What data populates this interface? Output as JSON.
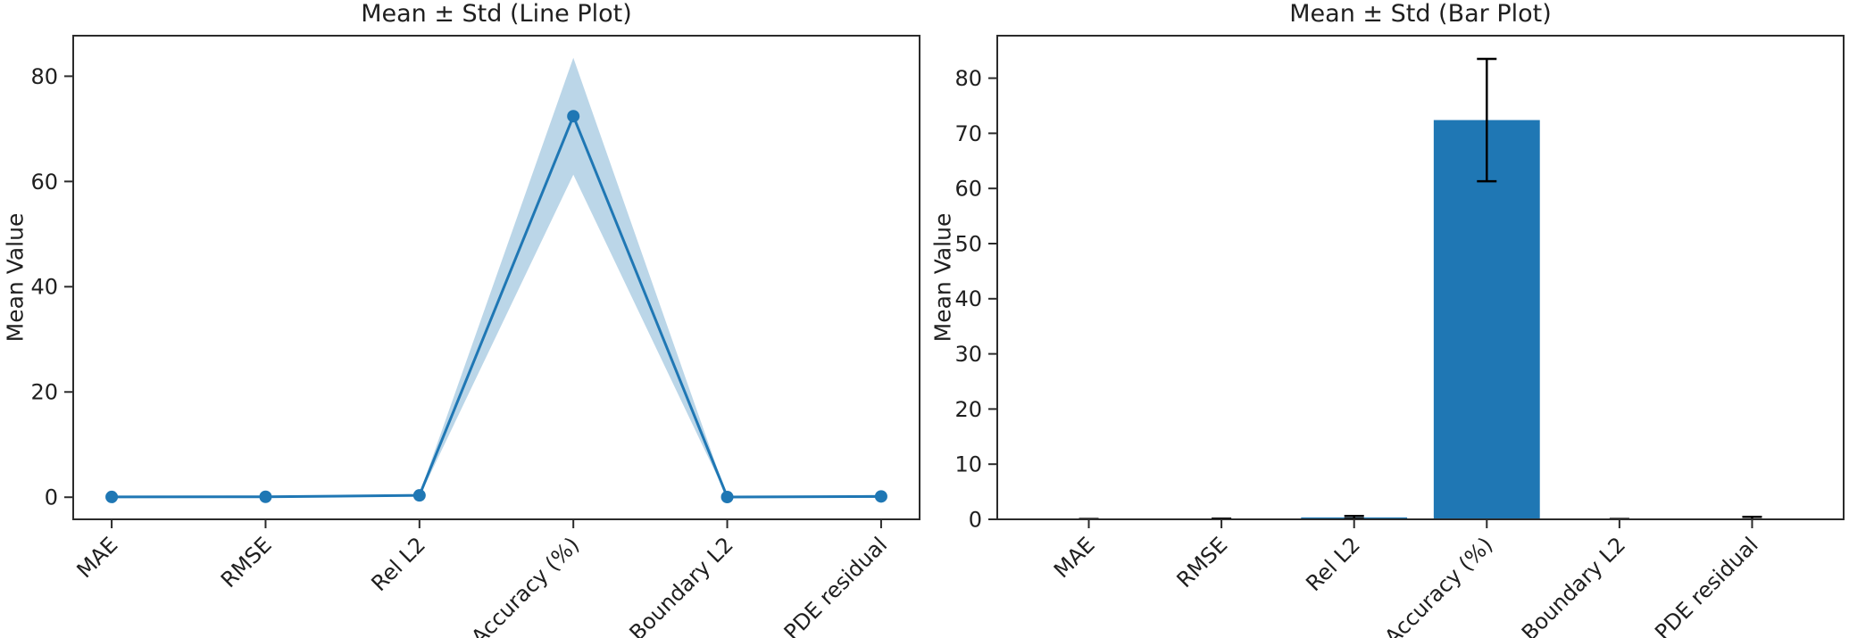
{
  "figure": {
    "background": "#ffffff",
    "text_color": "#1f1f1f",
    "spine_color": "#2b2b2b"
  },
  "chart_data": [
    {
      "id": "line-plot",
      "type": "line",
      "title": "Mean ± Std (Line Plot)",
      "ylabel": "Mean Value",
      "xlabel": "",
      "categories": [
        "MAE",
        "RMSE",
        "Rel L2",
        "Accuracy (%)",
        "Boundary L2",
        "PDE residual"
      ],
      "series": [
        {
          "name": "mean",
          "values": [
            0.05,
            0.08,
            0.35,
            72.4,
            0.04,
            0.15
          ]
        },
        {
          "name": "std",
          "values": [
            0.02,
            0.04,
            0.25,
            11.1,
            0.03,
            0.3
          ]
        }
      ],
      "ylim": [
        -4.2,
        87.7
      ],
      "yticks": [
        0,
        20,
        40,
        60,
        80
      ],
      "line_color": "#1f77b4",
      "marker": "circle",
      "marker_color": "#1f77b4",
      "band_color": "#1f77b4",
      "band_alpha": 0.3,
      "xtick_rotation": 45,
      "grid": false,
      "legend": "none"
    },
    {
      "id": "bar-plot",
      "type": "bar",
      "title": "Mean ± Std (Bar Plot)",
      "ylabel": "Mean Value",
      "xlabel": "",
      "categories": [
        "MAE",
        "RMSE",
        "Rel L2",
        "Accuracy (%)",
        "Boundary L2",
        "PDE residual"
      ],
      "series": [
        {
          "name": "mean",
          "values": [
            0.05,
            0.08,
            0.35,
            72.4,
            0.04,
            0.15
          ]
        },
        {
          "name": "std",
          "values": [
            0.02,
            0.04,
            0.25,
            11.1,
            0.03,
            0.3
          ]
        }
      ],
      "ylim": [
        0,
        87.7
      ],
      "yticks": [
        0,
        10,
        20,
        30,
        40,
        50,
        60,
        70,
        80
      ],
      "bar_color": "#1f77b4",
      "error_color": "#000000",
      "bar_width": 0.8,
      "xtick_rotation": 45,
      "grid": false,
      "legend": "none"
    }
  ]
}
